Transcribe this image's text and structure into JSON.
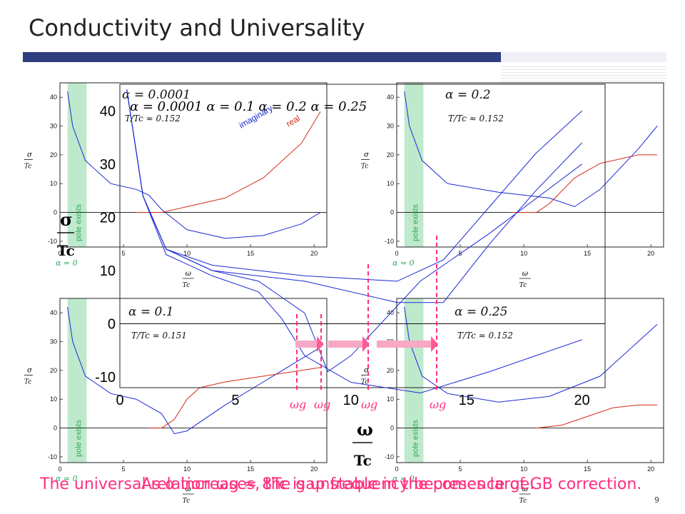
{
  "slide": {
    "title": "Conductivity and Universality",
    "page_number": "9",
    "caption_a": "The universal relation ωg ≈ 8Tc is unstable in the presence of GB correction.",
    "caption_b": "As α increases, the gap frequency becomes large."
  },
  "colors": {
    "real": "#d42a1a",
    "imaginary": "#1a2ad4",
    "pole_band": "#bfe9cc",
    "marker": "#ff2f7f",
    "accent_bar": "#2e3f7f"
  },
  "panel_labels": {
    "y_label_num": "σ",
    "y_label_den": "Tc",
    "x_label_num": "ω",
    "x_label_den": "Tc",
    "pole_text": "pole exists",
    "alpha_zero": "α = 0",
    "omega_g": "ωg",
    "imaginary": "imaginary",
    "real": "real",
    "combined_legend": "α = 0.0001   α = 0.1   α = 0.2   α = 0.25"
  },
  "panels": [
    {
      "alpha": "α = 0.0001",
      "temp": "T/Tc ≈ 0.152"
    },
    {
      "alpha": "α = 0.2",
      "temp": "T/Tc ≈ 0.152"
    },
    {
      "alpha": "α = 0.1",
      "temp": "T/Tc ≈ 0.151"
    },
    {
      "alpha": "α = 0.25",
      "temp": "T/Tc ≈ 0.152"
    }
  ],
  "chart_data": [
    {
      "type": "line",
      "title": "α = 0.0001",
      "xlabel": "ω/Tc",
      "ylabel": "σ/Tc",
      "xlim": [
        0,
        21
      ],
      "ylim": [
        -12,
        45
      ],
      "series": [
        {
          "name": "imaginary",
          "x": [
            0.6,
            1,
            2,
            4,
            6,
            7,
            8,
            10,
            13,
            16,
            19,
            20.5
          ],
          "y": [
            42,
            30,
            18,
            10,
            8,
            6,
            1,
            -6,
            -9,
            -8,
            -4,
            0
          ]
        },
        {
          "name": "real",
          "x": [
            6,
            7,
            8,
            10,
            13,
            16,
            19,
            20.5
          ],
          "y": [
            0,
            0,
            0,
            2,
            5,
            12,
            24,
            35
          ]
        }
      ]
    },
    {
      "type": "line",
      "title": "α = 0.2",
      "xlabel": "ω/Tc",
      "ylabel": "σ/Tc",
      "xlim": [
        0,
        21
      ],
      "ylim": [
        -12,
        45
      ],
      "series": [
        {
          "name": "imaginary",
          "x": [
            0.6,
            1,
            2,
            4,
            8,
            12,
            14,
            16,
            19,
            20.5
          ],
          "y": [
            42,
            30,
            18,
            10,
            7,
            5,
            2,
            8,
            22,
            30
          ]
        },
        {
          "name": "real",
          "x": [
            9,
            11,
            12,
            14,
            16,
            19,
            20.5
          ],
          "y": [
            0,
            0,
            3,
            12,
            17,
            20,
            20
          ]
        }
      ]
    },
    {
      "type": "line",
      "title": "α = 0.1",
      "xlabel": "ω/Tc",
      "ylabel": "σ/Tc",
      "xlim": [
        0,
        21
      ],
      "ylim": [
        -12,
        45
      ],
      "series": [
        {
          "name": "imaginary",
          "x": [
            0.6,
            1,
            2,
            4,
            6,
            8,
            9,
            10,
            13,
            16,
            19,
            20.5
          ],
          "y": [
            42,
            30,
            18,
            12,
            10,
            5,
            -2,
            -1,
            8,
            16,
            24,
            28
          ]
        },
        {
          "name": "real",
          "x": [
            7,
            8,
            9,
            10,
            11,
            13,
            16,
            19,
            20.5
          ],
          "y": [
            0,
            0,
            3,
            10,
            14,
            16,
            18,
            20,
            21
          ]
        }
      ]
    },
    {
      "type": "line",
      "title": "α = 0.25",
      "xlabel": "ω/Tc",
      "ylabel": "σ/Tc",
      "xlim": [
        0,
        21
      ],
      "ylim": [
        -12,
        45
      ],
      "series": [
        {
          "name": "imaginary",
          "x": [
            0.6,
            1,
            2,
            4,
            8,
            12,
            16,
            19,
            20.5
          ],
          "y": [
            42,
            30,
            18,
            12,
            9,
            11,
            18,
            30,
            36
          ]
        },
        {
          "name": "real",
          "x": [
            11,
            13,
            15,
            17,
            19,
            20.5
          ],
          "y": [
            0,
            1,
            4,
            7,
            8,
            8
          ]
        }
      ]
    },
    {
      "type": "line",
      "title": "",
      "xlabel": "ω/Tc",
      "ylabel": "σ/Tc",
      "xlim": [
        0,
        21
      ],
      "ylim": [
        -12,
        45
      ],
      "series": [
        {
          "name": "α = 0.0001",
          "x": [
            0.3,
            1,
            2,
            4,
            6,
            7,
            8,
            10,
            13,
            16,
            20
          ],
          "y": [
            44,
            24,
            13,
            9,
            6,
            1,
            -6,
            -11,
            -13,
            -9,
            -3
          ]
        },
        {
          "name": "α = 0.1",
          "x": [
            0.3,
            1,
            2,
            4,
            6,
            8,
            9,
            10,
            13,
            16,
            20
          ],
          "y": [
            44,
            24,
            14,
            10,
            8,
            2,
            -9,
            -6,
            8,
            17,
            30
          ]
        },
        {
          "name": "α = 0.2",
          "x": [
            0.3,
            1,
            2,
            4,
            8,
            12,
            14,
            16,
            18,
            20
          ],
          "y": [
            44,
            24,
            14,
            10,
            8,
            4,
            4,
            15,
            25,
            34
          ]
        },
        {
          "name": "α = 0.25",
          "x": [
            0.3,
            1,
            2,
            4,
            8,
            12,
            14,
            16,
            18,
            20
          ],
          "y": [
            44,
            24,
            14,
            11,
            9,
            8,
            12,
            22,
            32,
            40
          ]
        }
      ]
    }
  ]
}
